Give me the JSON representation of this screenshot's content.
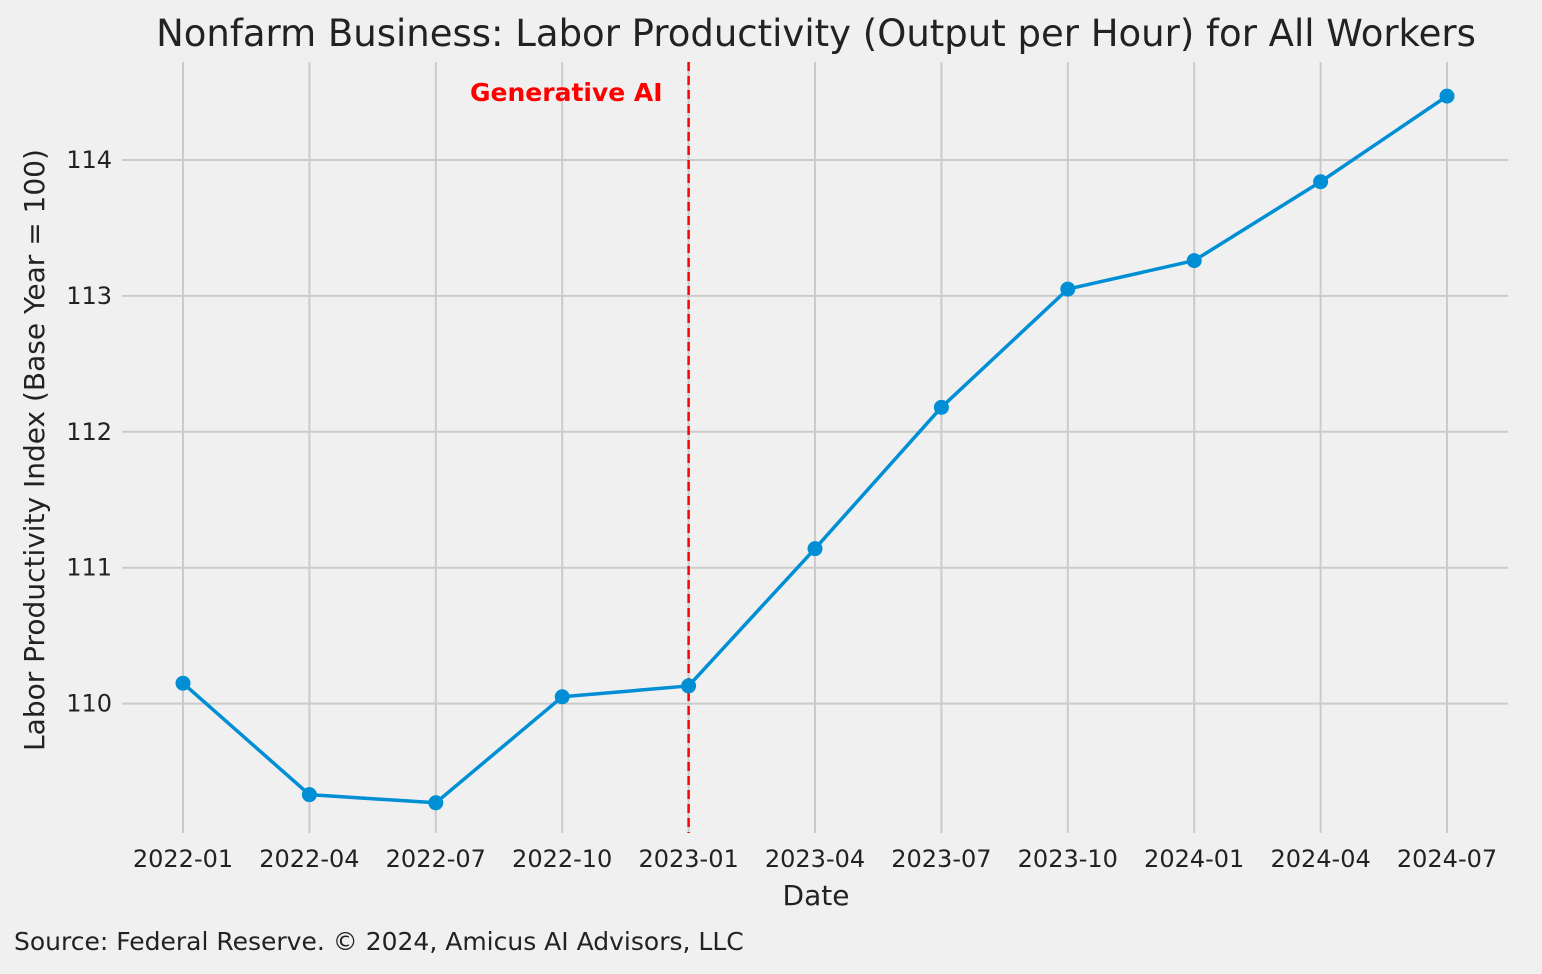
{
  "chart_data": {
    "type": "line",
    "title": "Nonfarm Business: Labor Productivity (Output per Hour) for All Workers",
    "xlabel": "Date",
    "ylabel": "Labor Productivity Index (Base Year = 100)",
    "x": [
      "2022-01",
      "2022-04",
      "2022-07",
      "2022-10",
      "2023-01",
      "2023-04",
      "2023-07",
      "2023-10",
      "2024-01",
      "2024-04",
      "2024-07"
    ],
    "x_tick_labels": [
      "2022-01",
      "2022-04",
      "2022-07",
      "2022-10",
      "2023-01",
      "2023-04",
      "2023-07",
      "2023-10",
      "2024-01",
      "2024-04",
      "2024-07"
    ],
    "series": [
      {
        "values": [
          110.15,
          109.33,
          109.27,
          110.05,
          110.13,
          111.14,
          112.18,
          113.05,
          113.26,
          113.84,
          114.47
        ],
        "color": "#008fd5"
      }
    ],
    "ylim": [
      109.05,
      114.75
    ],
    "y_ticks": [
      110,
      111,
      112,
      113,
      114
    ],
    "grid": true,
    "annotations": [
      {
        "type": "vertical-line",
        "x": "2022-12-31",
        "style": "dashed",
        "color": "#ff0000",
        "label": "Generative AI"
      }
    ]
  },
  "source": "Source: Federal Reserve. © 2024, Amicus AI Advisors, LLC",
  "colors": {
    "background": "#f0f0f0",
    "grid": "#cbcbcb",
    "line": "#008fd5",
    "annotation": "#ff0000",
    "text": "#222222"
  }
}
